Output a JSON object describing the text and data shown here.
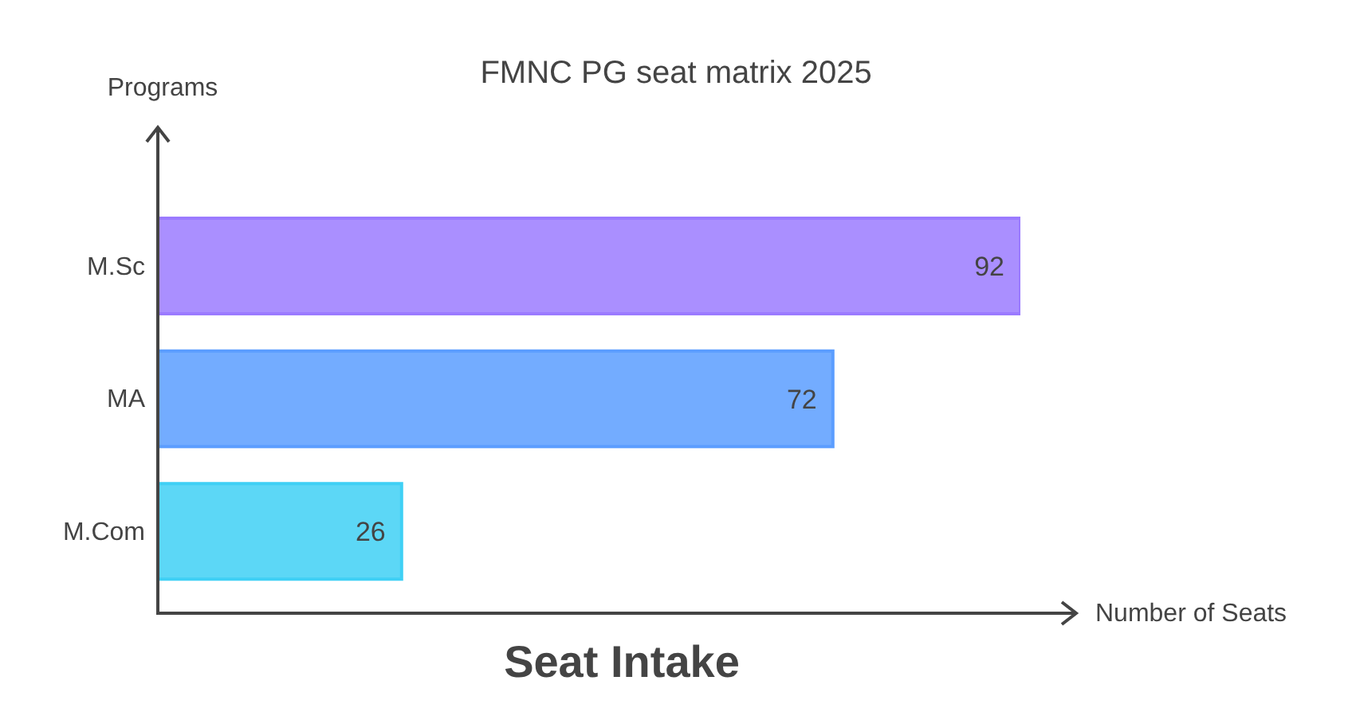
{
  "chart_data": {
    "type": "bar",
    "orientation": "horizontal",
    "title": "FMNC PG seat matrix 2025",
    "subtitle": "Seat Intake",
    "xlabel": "Number of Seats",
    "ylabel": "Programs",
    "categories": [
      "M.Sc",
      "MA",
      "M.Com"
    ],
    "values": [
      92,
      72,
      26
    ],
    "colors": [
      "#9b7bff",
      "#5b9dff",
      "#3fd0f5"
    ],
    "data_labels": true,
    "tick_labels": "y",
    "grid": false,
    "legend": false
  }
}
